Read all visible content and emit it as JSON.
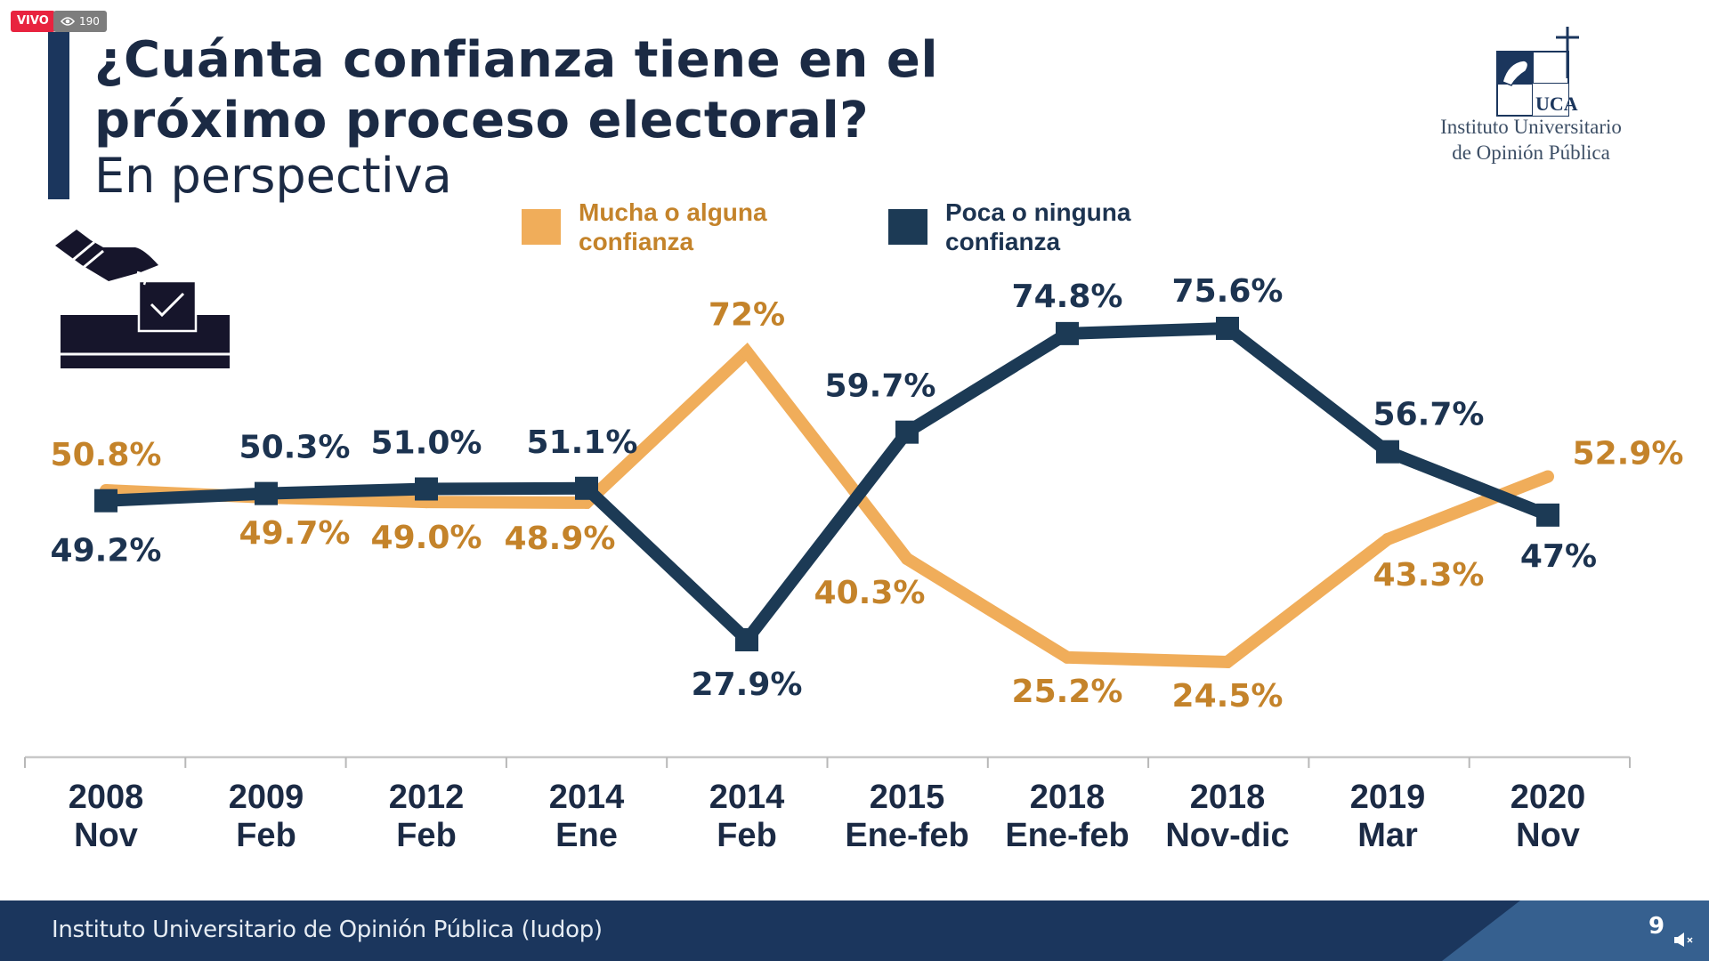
{
  "overlay": {
    "live_label": "VIVO",
    "viewer_count": "190",
    "eye_icon": "eye-icon"
  },
  "header": {
    "title_line1": "¿Cuánta confianza tiene en el",
    "title_line2": "próximo proceso electoral?",
    "subtitle": "En perspectiva"
  },
  "logo": {
    "mark_text": "UCA",
    "line1": "Instituto Universitario",
    "line2": "de Opinión Pública"
  },
  "icons": {
    "ballot": "ballot-box-icon"
  },
  "footer": {
    "text": "Instituto Universitario de Opinión Pública (Iudop)",
    "page_number": "9",
    "mute_icon": "speaker-muted-icon"
  },
  "colors": {
    "orange": "#f0ad5a",
    "orange_label": "#c4832a",
    "navy": "#1c3a55",
    "navy_label": "#1c3350",
    "title": "#1b2a44",
    "footer": "#1b365d",
    "footer_accent": "#36608f"
  },
  "chart_data": {
    "type": "line",
    "title": "¿Cuánta confianza tiene en el próximo proceso electoral? En perspectiva",
    "xlabel": "",
    "ylabel": "",
    "grid": false,
    "legend": "top-center",
    "categories": [
      [
        "2008",
        "Nov"
      ],
      [
        "2009",
        "Feb"
      ],
      [
        "2012",
        "Feb"
      ],
      [
        "2014",
        "Ene"
      ],
      [
        "2014",
        "Feb"
      ],
      [
        "2015",
        "Ene-feb"
      ],
      [
        "2018",
        "Ene-feb"
      ],
      [
        "2018",
        "Nov-dic"
      ],
      [
        "2019",
        "Mar"
      ],
      [
        "2020",
        "Nov"
      ]
    ],
    "series": [
      {
        "name": "Mucha o alguna confianza",
        "color": "#f0ad5a",
        "label_color": "#c4832a",
        "marker": "none",
        "values": [
          50.8,
          49.7,
          49.0,
          48.9,
          72.0,
          40.3,
          25.2,
          24.5,
          43.3,
          52.9
        ],
        "labels": [
          "50.8%",
          "49.7%",
          "49.0%",
          "48.9%",
          "72%",
          "40.3%",
          "25.2%",
          "24.5%",
          "43.3%",
          "52.9%"
        ]
      },
      {
        "name": "Poca o ninguna confianza",
        "color": "#1c3a55",
        "label_color": "#1c3350",
        "marker": "square",
        "values": [
          49.2,
          50.3,
          51.0,
          51.1,
          27.9,
          59.7,
          74.8,
          75.6,
          56.7,
          47.0
        ],
        "labels": [
          "49.2%",
          "50.3%",
          "51.0%",
          "51.1%",
          "27.9%",
          "59.7%",
          "74.8%",
          "75.6%",
          "56.7%",
          "47%"
        ]
      }
    ]
  }
}
